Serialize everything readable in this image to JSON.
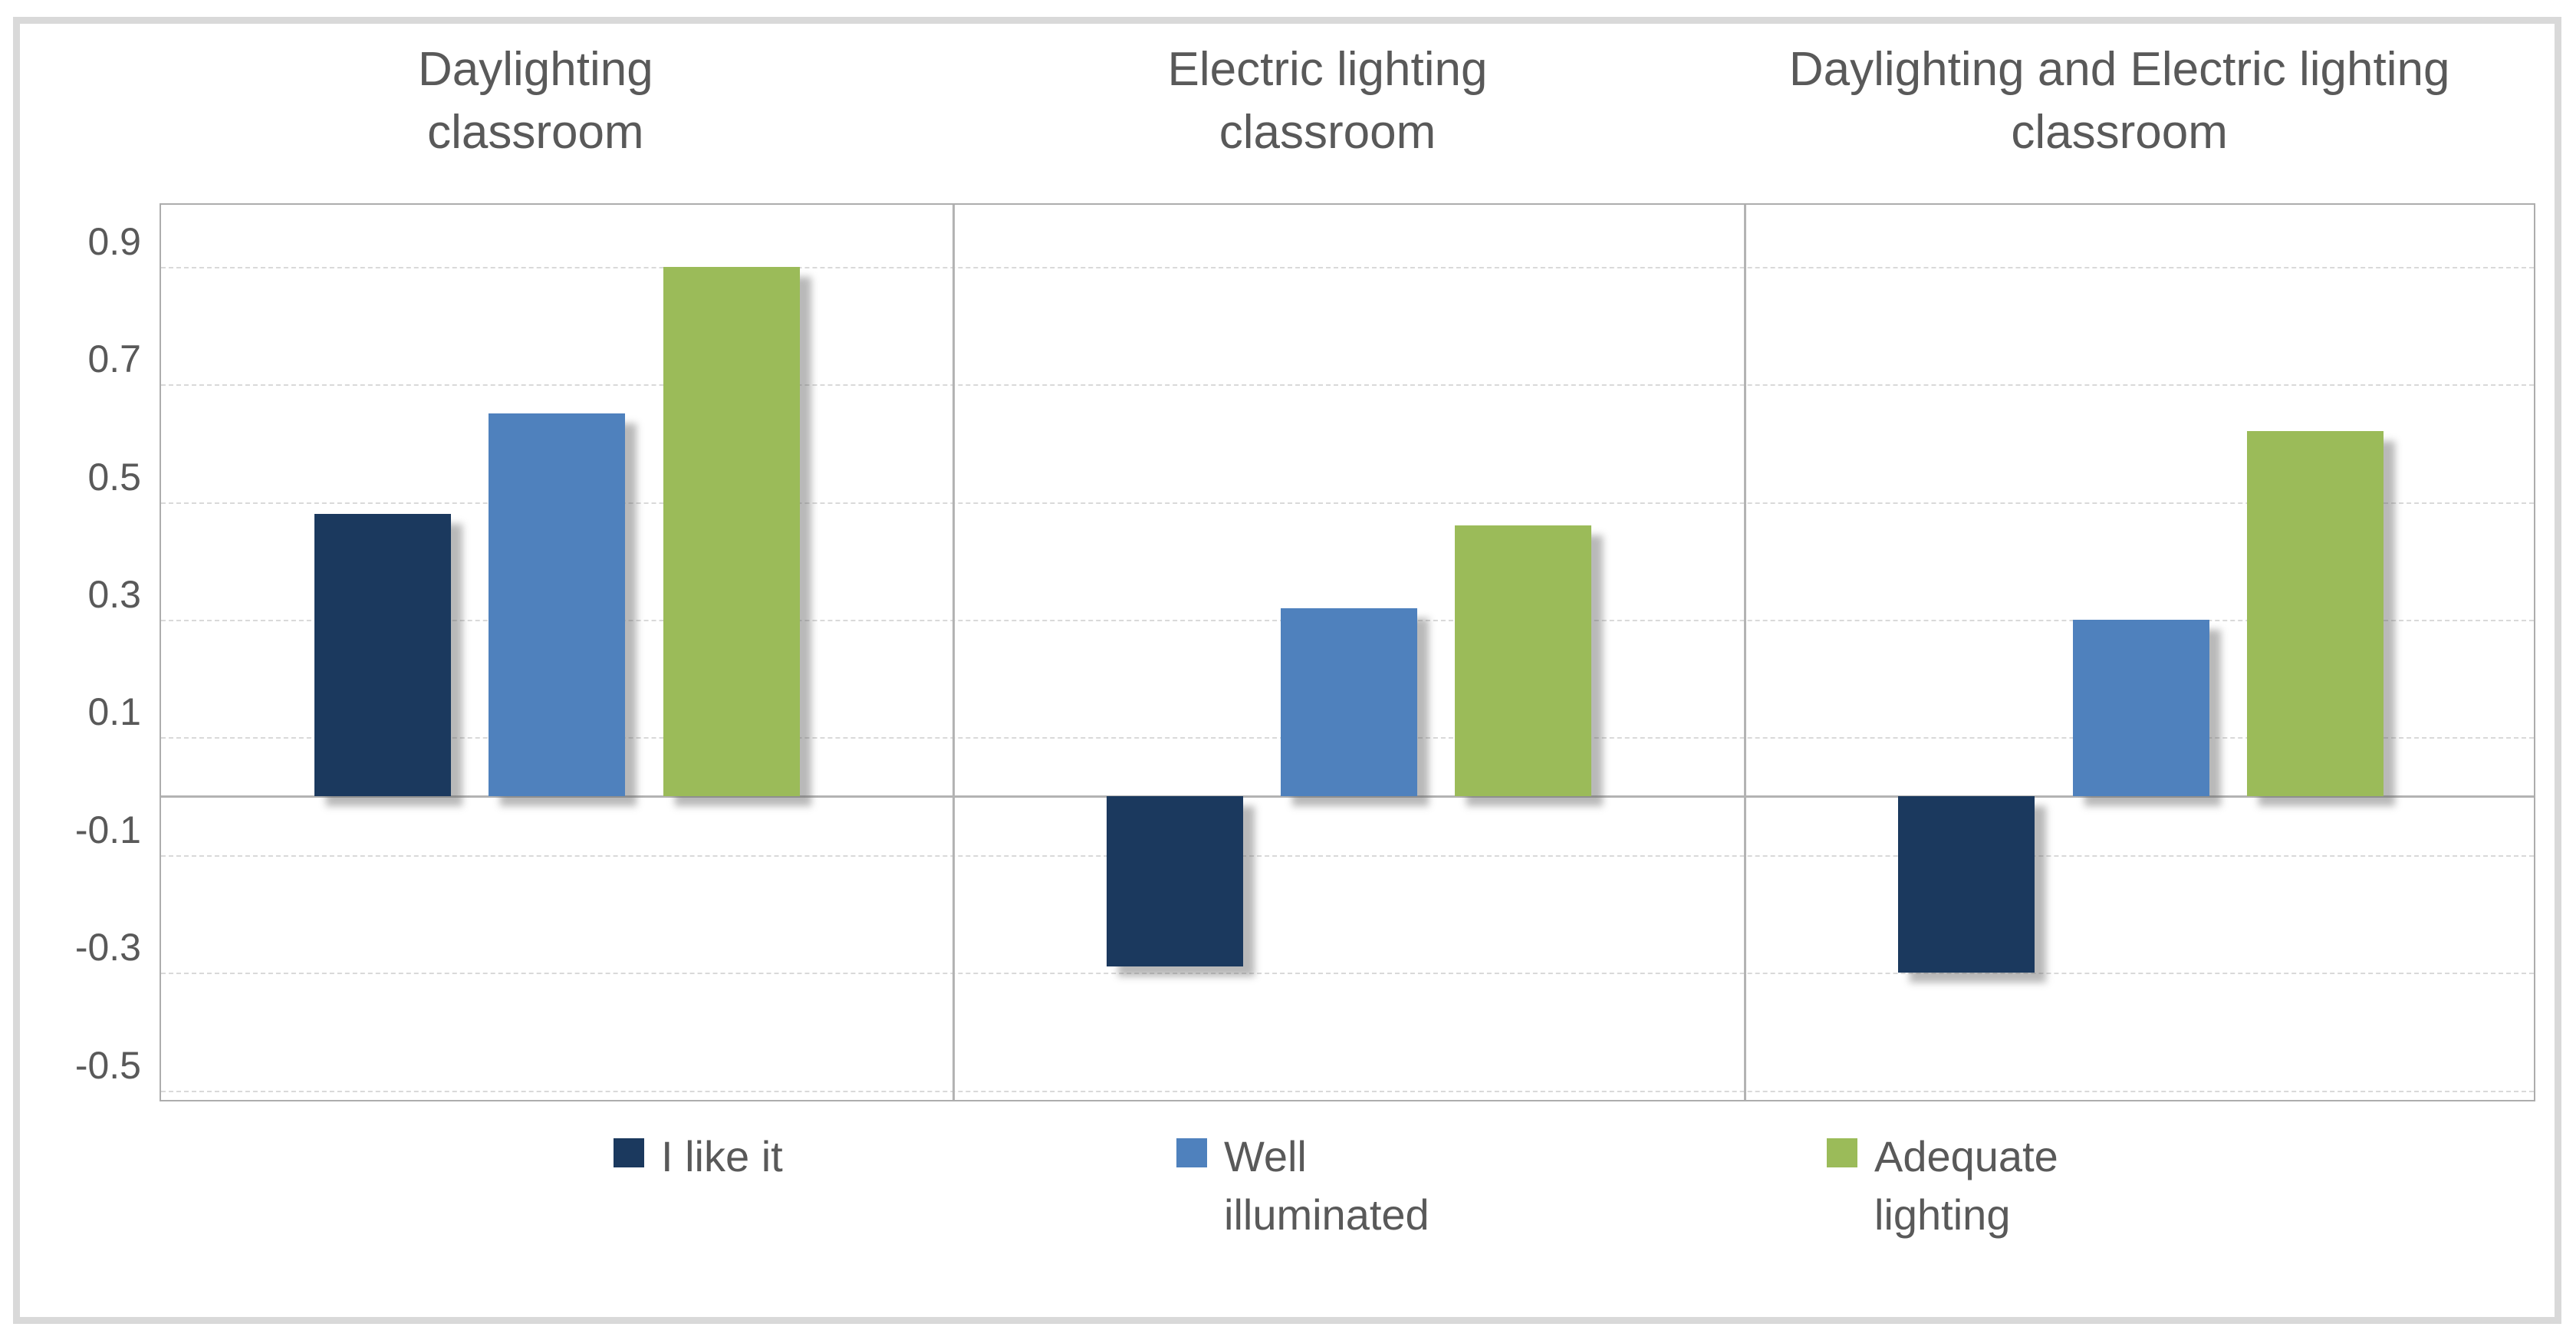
{
  "figure": {
    "background": "#ffffff",
    "frame_color": "#d9d9d9"
  },
  "chart_data": {
    "type": "bar",
    "title": "",
    "categories": [
      "Daylighting classroom",
      "Electric lighting classroom",
      "Daylighting and Electric lighting classroom"
    ],
    "category_title_lines": [
      [
        "Daylighting",
        "classroom"
      ],
      [
        "Electric lighting",
        "classroom"
      ],
      [
        "Daylighting and Electric lighting",
        "classroom"
      ]
    ],
    "series": [
      {
        "name": "I like it",
        "color": "#1b395e",
        "values": [
          0.48,
          -0.29,
          -0.3
        ]
      },
      {
        "name": "Well illuminated",
        "color": "#4f81bd",
        "values": [
          0.65,
          0.32,
          0.3
        ]
      },
      {
        "name": "Adequate lighting",
        "color": "#9bbb59",
        "values": [
          0.9,
          0.46,
          0.62
        ]
      }
    ],
    "y_tick_labels": [
      "0.9",
      "0.7",
      "0.5",
      "0.3",
      "0.1",
      "-0.1",
      "-0.3",
      "-0.5"
    ],
    "y_tick_values": [
      0.9,
      0.7,
      0.5,
      0.3,
      0.1,
      -0.1,
      -0.3,
      -0.5
    ],
    "ylim": [
      -0.52,
      1.0
    ],
    "grid": true,
    "zero_line": true,
    "legend_position": "bottom",
    "xlabel": "",
    "ylabel": "",
    "text_color": "#595959",
    "gridline_color": "#d9d9d9",
    "axis_line_color": "#b3b3b3"
  }
}
